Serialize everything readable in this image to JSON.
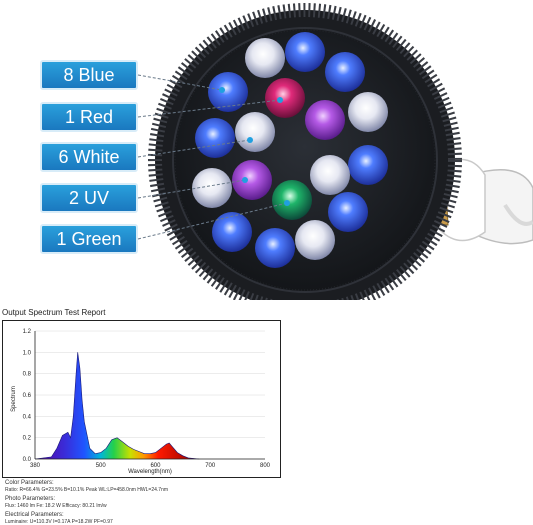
{
  "labels": [
    {
      "text": "8 Blue"
    },
    {
      "text": "1 Red"
    },
    {
      "text": "6 White"
    },
    {
      "text": "2 UV"
    },
    {
      "text": "1 Green"
    }
  ],
  "report": {
    "title": "Output Spectrum Test Report",
    "y_axis_label": "Spectrum",
    "x_axis_label": "Wavelength(nm)",
    "y_ticks": [
      "1.2",
      "1.0",
      "0.8",
      "0.6",
      "0.4",
      "0.2",
      "0.0"
    ],
    "x_ticks": [
      "380",
      "500",
      "600",
      "700",
      "800"
    ]
  },
  "chart_data": {
    "type": "area",
    "xlabel": "Wavelength(nm)",
    "ylabel": "Spectrum",
    "xlim": [
      380,
      800
    ],
    "ylim": [
      0,
      1.2
    ],
    "x": [
      380,
      410,
      420,
      430,
      440,
      445,
      450,
      455,
      458,
      462,
      466,
      470,
      480,
      490,
      500,
      510,
      520,
      530,
      540,
      550,
      560,
      570,
      580,
      590,
      600,
      610,
      620,
      625,
      630,
      640,
      650,
      660,
      680
    ],
    "y": [
      0.0,
      0.02,
      0.1,
      0.22,
      0.25,
      0.2,
      0.4,
      0.8,
      1.0,
      0.85,
      0.55,
      0.35,
      0.1,
      0.05,
      0.06,
      0.1,
      0.18,
      0.2,
      0.16,
      0.12,
      0.09,
      0.07,
      0.05,
      0.05,
      0.06,
      0.1,
      0.14,
      0.15,
      0.12,
      0.06,
      0.03,
      0.01,
      0.0
    ]
  },
  "parameters": {
    "color_head": "Color Parameters:",
    "color_line": "Ratio: R=66.4%  G=23.5%  B=10.1%  Peak WL:LP=458.0nm HWL=24.7nm",
    "photo_head": "Photo Parameters:",
    "photo_line": "Flux: 1460 lm  Fe: 18.2  W  Efficacy: 80.21 lm/w",
    "elec_head": "Electrical Parameters:",
    "elec_line": "Luminaire:  U=110.3V   I=0.17A   P=18.2W   PF=0.97"
  }
}
